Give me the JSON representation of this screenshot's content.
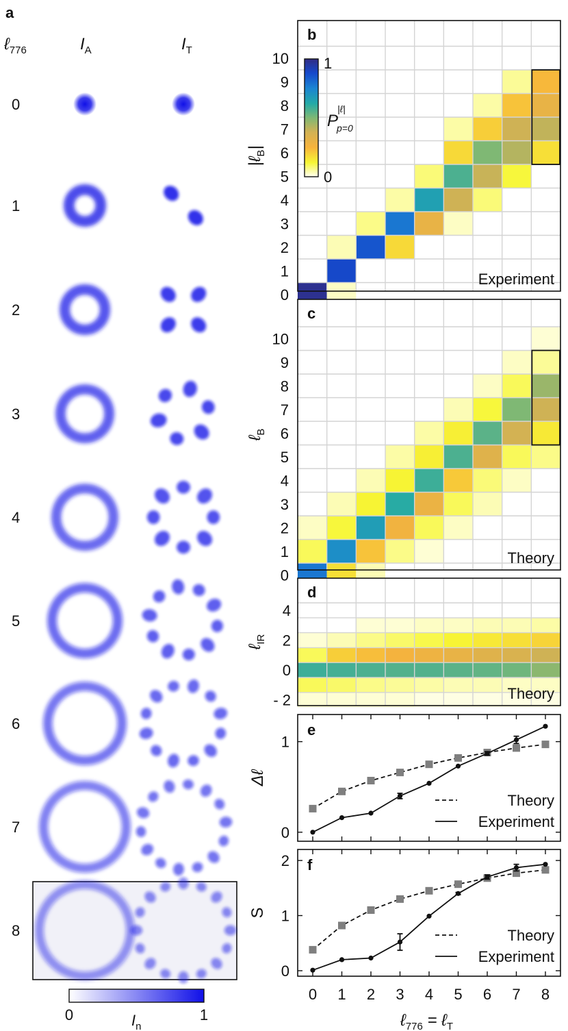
{
  "panel_letters": {
    "a": "a",
    "b": "b",
    "c": "c",
    "d": "d",
    "e": "e",
    "f": "f"
  },
  "panel_a": {
    "col_headers": {
      "l776": "ℓ",
      "l776_sub": "776",
      "ia": "I",
      "ia_sub": "A",
      "it": "I",
      "it_sub": "T"
    },
    "row_labels": [
      "0",
      "1",
      "2",
      "3",
      "4",
      "5",
      "6",
      "7",
      "8"
    ],
    "highlighted_row": "8",
    "colorbar": {
      "min": "0",
      "max": "1",
      "label": "I",
      "label_sub": "n",
      "color_low": "#ffffff",
      "color_high": "#1010e8"
    }
  },
  "colors": {
    "grid": "#d4d4d4",
    "frame": "#111111",
    "theory_marker": "#7f7f7f",
    "experiment_marker": "#111111"
  },
  "colormap": {
    "stops": [
      "#fffff2",
      "#f7f734",
      "#f7b33c",
      "#d2b254",
      "#7fb874",
      "#24aaa6",
      "#1b85d2",
      "#1549cc",
      "#312c84"
    ],
    "label_sup": "|ℓ|",
    "label_sub": "p=0",
    "label_main": "P",
    "min": "0",
    "max": "1"
  },
  "chart_data": [
    {
      "panel": "b",
      "type": "heatmap",
      "annotation": "Experiment",
      "ylabel": "|ℓ",
      "ylabel_sub": "B",
      "ylabel_tail": "|",
      "x": [
        0,
        1,
        2,
        3,
        4,
        5,
        6,
        7,
        8
      ],
      "y": [
        0,
        1,
        2,
        3,
        4,
        5,
        6,
        7,
        8,
        9,
        10
      ],
      "y_ticks": [
        "0",
        "1",
        "2",
        "3",
        "4",
        "5",
        "6",
        "7",
        "8",
        "9",
        "10"
      ],
      "boxed_x": 8,
      "boxed_y": [
        6,
        9
      ],
      "cells": [
        [
          0,
          0,
          0.98
        ],
        [
          1,
          0,
          0.03
        ],
        [
          1,
          1,
          0.88
        ],
        [
          1,
          2,
          0.04
        ],
        [
          2,
          2,
          0.85
        ],
        [
          3,
          2,
          0.18
        ],
        [
          2,
          3,
          0.07
        ],
        [
          3,
          3,
          0.78
        ],
        [
          4,
          3,
          0.3
        ],
        [
          5,
          3,
          0.03
        ],
        [
          3,
          4,
          0.05
        ],
        [
          4,
          4,
          0.66
        ],
        [
          5,
          4,
          0.38
        ],
        [
          6,
          4,
          0.08
        ],
        [
          4,
          5,
          0.08
        ],
        [
          5,
          5,
          0.57
        ],
        [
          6,
          5,
          0.39
        ],
        [
          7,
          5,
          0.12
        ],
        [
          5,
          6,
          0.18
        ],
        [
          6,
          6,
          0.5
        ],
        [
          7,
          6,
          0.42
        ],
        [
          8,
          6,
          0.17
        ],
        [
          5,
          7,
          0.05
        ],
        [
          6,
          7,
          0.2
        ],
        [
          7,
          7,
          0.38
        ],
        [
          8,
          7,
          0.4
        ],
        [
          6,
          8,
          0.05
        ],
        [
          7,
          8,
          0.22
        ],
        [
          8,
          8,
          0.3
        ],
        [
          7,
          9,
          0.06
        ],
        [
          8,
          9,
          0.24
        ]
      ]
    },
    {
      "panel": "c",
      "type": "heatmap",
      "annotation": "Theory",
      "ylabel": "ℓ",
      "ylabel_sub": "B",
      "x": [
        0,
        1,
        2,
        3,
        4,
        5,
        6,
        7,
        8
      ],
      "y": [
        0,
        1,
        2,
        3,
        4,
        5,
        6,
        7,
        8,
        9,
        10
      ],
      "y_ticks": [
        "0",
        "1",
        "2",
        "3",
        "4",
        "5",
        "6",
        "7",
        "8",
        "9",
        "10"
      ],
      "boxed_x": 8,
      "boxed_y": [
        6,
        9
      ],
      "cells": [
        [
          0,
          0,
          0.78
        ],
        [
          1,
          0,
          0.17
        ],
        [
          2,
          0,
          0.04
        ],
        [
          0,
          1,
          0.1
        ],
        [
          1,
          1,
          0.72
        ],
        [
          2,
          1,
          0.22
        ],
        [
          3,
          1,
          0.07
        ],
        [
          4,
          1,
          0.02
        ],
        [
          0,
          2,
          0.03
        ],
        [
          1,
          2,
          0.12
        ],
        [
          2,
          2,
          0.67
        ],
        [
          3,
          2,
          0.27
        ],
        [
          4,
          2,
          0.1
        ],
        [
          5,
          2,
          0.03
        ],
        [
          1,
          3,
          0.04
        ],
        [
          2,
          3,
          0.13
        ],
        [
          3,
          3,
          0.62
        ],
        [
          4,
          3,
          0.29
        ],
        [
          5,
          3,
          0.1
        ],
        [
          6,
          3,
          0.04
        ],
        [
          2,
          4,
          0.04
        ],
        [
          3,
          4,
          0.13
        ],
        [
          4,
          4,
          0.59
        ],
        [
          5,
          4,
          0.21
        ],
        [
          6,
          4,
          0.08
        ],
        [
          7,
          4,
          0.03
        ],
        [
          3,
          5,
          0.05
        ],
        [
          4,
          5,
          0.14
        ],
        [
          5,
          5,
          0.57
        ],
        [
          6,
          5,
          0.33
        ],
        [
          7,
          5,
          0.1
        ],
        [
          8,
          5,
          0.07
        ],
        [
          4,
          6,
          0.05
        ],
        [
          5,
          6,
          0.14
        ],
        [
          6,
          6,
          0.55
        ],
        [
          7,
          6,
          0.37
        ],
        [
          8,
          6,
          0.15
        ],
        [
          5,
          7,
          0.04
        ],
        [
          6,
          7,
          0.12
        ],
        [
          7,
          7,
          0.5
        ],
        [
          8,
          7,
          0.38
        ],
        [
          6,
          8,
          0.03
        ],
        [
          7,
          8,
          0.1
        ],
        [
          8,
          8,
          0.46
        ],
        [
          7,
          9,
          0.03
        ],
        [
          8,
          9,
          0.06
        ],
        [
          8,
          10,
          0.02
        ]
      ]
    },
    {
      "panel": "d",
      "type": "heatmap",
      "annotation": "Theory",
      "ylabel": "ℓ",
      "ylabel_sub": "IR",
      "x": [
        0,
        1,
        2,
        3,
        4,
        5,
        6,
        7,
        8
      ],
      "y": [
        -3,
        -2,
        -1,
        0,
        1,
        2,
        3,
        4
      ],
      "y_ticks": [
        {
          "value": 4,
          "label": "4"
        },
        {
          "value": 2,
          "label": "2"
        },
        {
          "value": 0,
          "label": "0"
        },
        {
          "value": -2,
          "label": "- 2"
        }
      ],
      "cells": [
        [
          0,
          0,
          0.59
        ],
        [
          1,
          0,
          0.58
        ],
        [
          2,
          0,
          0.57
        ],
        [
          3,
          0,
          0.56
        ],
        [
          4,
          0,
          0.56
        ],
        [
          5,
          0,
          0.55
        ],
        [
          6,
          0,
          0.54
        ],
        [
          7,
          0,
          0.52
        ],
        [
          8,
          0,
          0.48
        ],
        [
          0,
          1,
          0.1
        ],
        [
          1,
          1,
          0.2
        ],
        [
          2,
          1,
          0.23
        ],
        [
          3,
          1,
          0.26
        ],
        [
          4,
          1,
          0.28
        ],
        [
          5,
          1,
          0.3
        ],
        [
          6,
          1,
          0.33
        ],
        [
          7,
          1,
          0.35
        ],
        [
          8,
          1,
          0.38
        ],
        [
          0,
          -1,
          0.1
        ],
        [
          1,
          -1,
          0.09
        ],
        [
          2,
          -1,
          0.07
        ],
        [
          3,
          -1,
          0.06
        ],
        [
          4,
          -1,
          0.05
        ],
        [
          5,
          -1,
          0.04
        ],
        [
          6,
          -1,
          0.04
        ],
        [
          7,
          -1,
          0.03
        ],
        [
          8,
          -1,
          0.03
        ],
        [
          0,
          2,
          0.02
        ],
        [
          1,
          2,
          0.04
        ],
        [
          2,
          2,
          0.07
        ],
        [
          3,
          2,
          0.09
        ],
        [
          4,
          2,
          0.11
        ],
        [
          5,
          2,
          0.13
        ],
        [
          6,
          2,
          0.15
        ],
        [
          7,
          2,
          0.17
        ],
        [
          8,
          2,
          0.19
        ],
        [
          0,
          -2,
          0.02
        ],
        [
          1,
          -2,
          0.02
        ],
        [
          2,
          -2,
          0.02
        ],
        [
          3,
          -2,
          0.02
        ],
        [
          4,
          -2,
          0.01
        ],
        [
          5,
          -2,
          0.01
        ],
        [
          6,
          -2,
          0.01
        ],
        [
          7,
          -2,
          0.01
        ],
        [
          8,
          -2,
          0.01
        ],
        [
          2,
          3,
          0.02
        ],
        [
          3,
          3,
          0.02
        ],
        [
          4,
          3,
          0.03
        ],
        [
          5,
          3,
          0.03
        ],
        [
          6,
          3,
          0.04
        ],
        [
          7,
          3,
          0.04
        ],
        [
          8,
          3,
          0.05
        ]
      ]
    },
    {
      "panel": "e",
      "type": "line",
      "ylabel": "Δℓ",
      "ylim": [
        -0.1,
        1.3
      ],
      "y_ticks": [
        0,
        1
      ],
      "x": [
        0,
        1,
        2,
        3,
        4,
        5,
        6,
        7,
        8
      ],
      "legend_position": "bottom-right",
      "series": [
        {
          "name": "Theory",
          "style": "dashed",
          "marker": "square",
          "values": [
            0.26,
            0.45,
            0.57,
            0.66,
            0.75,
            0.82,
            0.88,
            0.93,
            0.97
          ]
        },
        {
          "name": "Experiment",
          "style": "solid",
          "marker": "circle",
          "values": [
            0.0,
            0.16,
            0.21,
            0.4,
            0.54,
            0.73,
            0.87,
            1.02,
            1.17
          ],
          "errors": [
            0,
            0,
            0,
            0.03,
            0,
            0,
            0.02,
            0.04,
            0
          ]
        }
      ]
    },
    {
      "panel": "f",
      "type": "line",
      "ylabel": "S",
      "ylim": [
        -0.1,
        2.2
      ],
      "y_ticks": [
        0,
        1,
        2
      ],
      "x": [
        0,
        1,
        2,
        3,
        4,
        5,
        6,
        7,
        8
      ],
      "x_ticks": [
        "0",
        "1",
        "2",
        "3",
        "4",
        "5",
        "6",
        "7",
        "8"
      ],
      "xlabel": "ℓ",
      "xlabel_sub1": "776",
      "xlabel_mid": " = ℓ",
      "xlabel_sub2": "T",
      "legend_position": "bottom-right",
      "series": [
        {
          "name": "Theory",
          "style": "dashed",
          "marker": "square",
          "values": [
            0.38,
            0.82,
            1.1,
            1.3,
            1.45,
            1.57,
            1.68,
            1.77,
            1.83
          ]
        },
        {
          "name": "Experiment",
          "style": "solid",
          "marker": "circle",
          "values": [
            0.01,
            0.2,
            0.23,
            0.52,
            0.99,
            1.4,
            1.7,
            1.87,
            1.93
          ],
          "errors": [
            0,
            0,
            0,
            0.15,
            0,
            0.02,
            0.04,
            0.06,
            0
          ]
        }
      ]
    }
  ]
}
